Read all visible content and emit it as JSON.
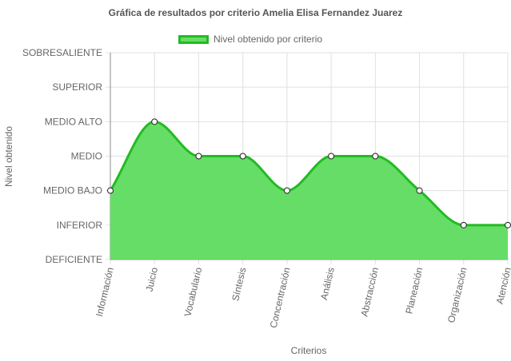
{
  "chart_data": {
    "type": "area",
    "title": "Gráfica de resultados por criterio Amelia Elisa Fernandez Juarez",
    "xlabel": "Criterios",
    "ylabel": "Nivel obtenido",
    "categories": [
      "Información",
      "Juicio",
      "Vocabulario",
      "Síntesis",
      "Concentración",
      "Análisis",
      "Abstracción",
      "Planeación",
      "Organización",
      "Atención"
    ],
    "y_levels": [
      "DEFICIENTE",
      "INFERIOR",
      "MEDIO BAJO",
      "MEDIO",
      "MEDIO ALTO",
      "SUPERIOR",
      "SOBRESALIENTE"
    ],
    "ylim": [
      0,
      6
    ],
    "series": [
      {
        "name": "Nivel obtenido por criterio",
        "values": [
          2,
          4,
          3,
          3,
          2,
          3,
          3,
          2,
          1,
          1
        ]
      }
    ],
    "grid": true,
    "legend": "top",
    "colors": {
      "fill": "#66dd66",
      "line": "#22bb22",
      "grid": "#e0e0e0",
      "axis": "#666666"
    }
  }
}
